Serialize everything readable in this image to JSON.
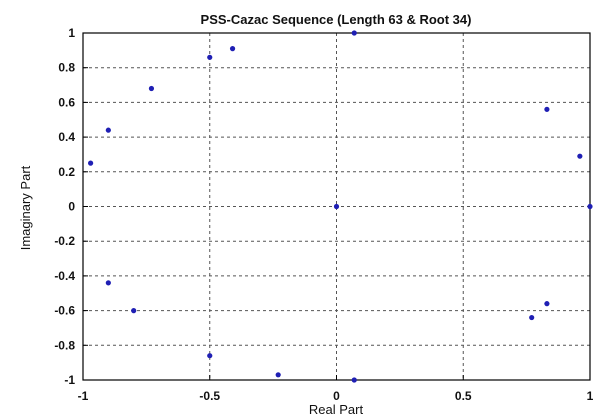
{
  "chart_data": {
    "type": "scatter",
    "title": "PSS-Cazac Sequence (Length 63 & Root 34)",
    "xlabel": "Real Part",
    "ylabel": "Imaginary Part",
    "xlim": [
      -1.0,
      1.0
    ],
    "ylim": [
      -1.0,
      1.0
    ],
    "xticks": [
      -1,
      -0.5,
      0,
      0.5,
      1
    ],
    "xtick_labels": [
      "-1",
      "-0.5",
      "0",
      "0.5",
      "1"
    ],
    "yticks": [
      1,
      0.8,
      0.6,
      0.4,
      0.2,
      0,
      -0.2,
      -0.4,
      -0.6,
      -0.8,
      -1
    ],
    "ytick_labels": [
      "1",
      "0.8",
      "0.6",
      "0.4",
      "0.2",
      "0",
      "-0.2",
      "-0.4",
      "-0.6",
      "-0.8",
      "-1"
    ],
    "grid": true,
    "grid_style": "dashed",
    "series": [
      {
        "color": "#1f1fb4",
        "points": [
          {
            "x": 0.07,
            "y": 1.0
          },
          {
            "x": -0.5,
            "y": 0.86
          },
          {
            "x": -0.41,
            "y": 0.91
          },
          {
            "x": -0.73,
            "y": 0.68
          },
          {
            "x": -0.9,
            "y": 0.44
          },
          {
            "x": -0.97,
            "y": 0.25
          },
          {
            "x": 0.83,
            "y": 0.56
          },
          {
            "x": 0.96,
            "y": 0.29
          },
          {
            "x": 0.0,
            "y": 0.0
          },
          {
            "x": 1.0,
            "y": 0.0
          },
          {
            "x": -0.9,
            "y": -0.44
          },
          {
            "x": -0.8,
            "y": -0.6
          },
          {
            "x": 0.83,
            "y": -0.56
          },
          {
            "x": 0.77,
            "y": -0.64
          },
          {
            "x": -0.5,
            "y": -0.86
          },
          {
            "x": -0.23,
            "y": -0.97
          },
          {
            "x": 0.07,
            "y": -1.0
          }
        ]
      }
    ]
  }
}
